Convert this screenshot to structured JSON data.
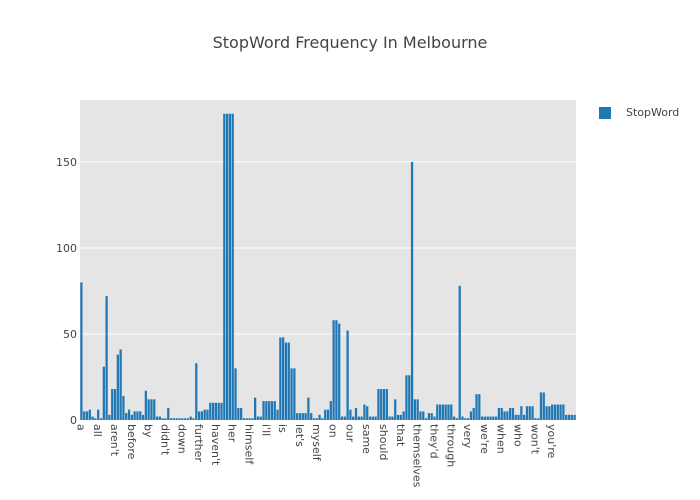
{
  "chart_data": {
    "type": "bar",
    "title": "StopWord Frequency In Melbourne",
    "xlabel": "",
    "ylabel": "",
    "ylim": [
      0,
      186
    ],
    "yticks": [
      0,
      50,
      100,
      150
    ],
    "grid": true,
    "legend_position": "top-right",
    "colors": {
      "bar": "#1f77b4",
      "plot_bg": "#e5e5e5",
      "grid": "#ffffff"
    },
    "series": [
      {
        "name": "StopWord",
        "values": [
          80,
          5,
          5,
          6,
          2,
          1,
          6,
          1,
          31,
          72,
          3,
          18,
          18,
          38,
          41,
          14,
          4,
          6,
          3,
          5,
          5,
          5,
          3,
          17,
          12,
          12,
          12,
          2,
          2,
          1,
          1,
          7,
          1,
          1,
          1,
          1,
          1,
          1,
          1,
          2,
          1,
          33,
          5,
          5,
          6,
          6,
          10,
          10,
          10,
          10,
          10,
          178,
          178,
          178,
          178,
          30,
          7,
          7,
          1,
          1,
          1,
          1,
          13,
          2,
          2,
          11,
          11,
          11,
          11,
          11,
          6,
          48,
          48,
          45,
          45,
          30,
          30,
          4,
          4,
          4,
          4,
          13,
          4,
          1,
          1,
          3,
          1,
          6,
          6,
          11,
          58,
          58,
          56,
          2,
          2,
          52,
          6,
          2,
          7,
          2,
          2,
          9,
          8,
          2,
          2,
          2,
          18,
          18,
          18,
          18,
          2,
          2,
          12,
          3,
          3,
          5,
          26,
          26,
          150,
          12,
          12,
          5,
          5,
          1,
          4,
          4,
          2,
          9,
          9,
          9,
          9,
          9,
          9,
          2,
          1,
          78,
          2,
          1,
          1,
          5,
          7,
          15,
          15,
          2,
          2,
          2,
          2,
          2,
          2,
          7,
          7,
          5,
          5,
          7,
          7,
          3,
          3,
          8,
          3,
          8,
          8,
          8,
          1,
          1,
          16,
          16,
          8,
          8,
          9,
          9,
          9,
          9,
          9,
          3,
          3,
          3,
          3
        ]
      }
    ],
    "x_tick_labels": [
      "a",
      "all",
      "aren't",
      "before",
      "by",
      "didn't",
      "down",
      "further",
      "haven't",
      "her",
      "himself",
      "i'll",
      "is",
      "let's",
      "myself",
      "on",
      "our",
      "same",
      "should",
      "that",
      "themselves",
      "they'd",
      "through",
      "very",
      "we're",
      "when",
      "who",
      "won't",
      "you're"
    ],
    "x_tick_indices": [
      0,
      6,
      12,
      18,
      24,
      30,
      36,
      42,
      48,
      54,
      60,
      66,
      72,
      78,
      84,
      90,
      96,
      102,
      108,
      114,
      120,
      126,
      132,
      138,
      144,
      150,
      156,
      162,
      168
    ]
  }
}
